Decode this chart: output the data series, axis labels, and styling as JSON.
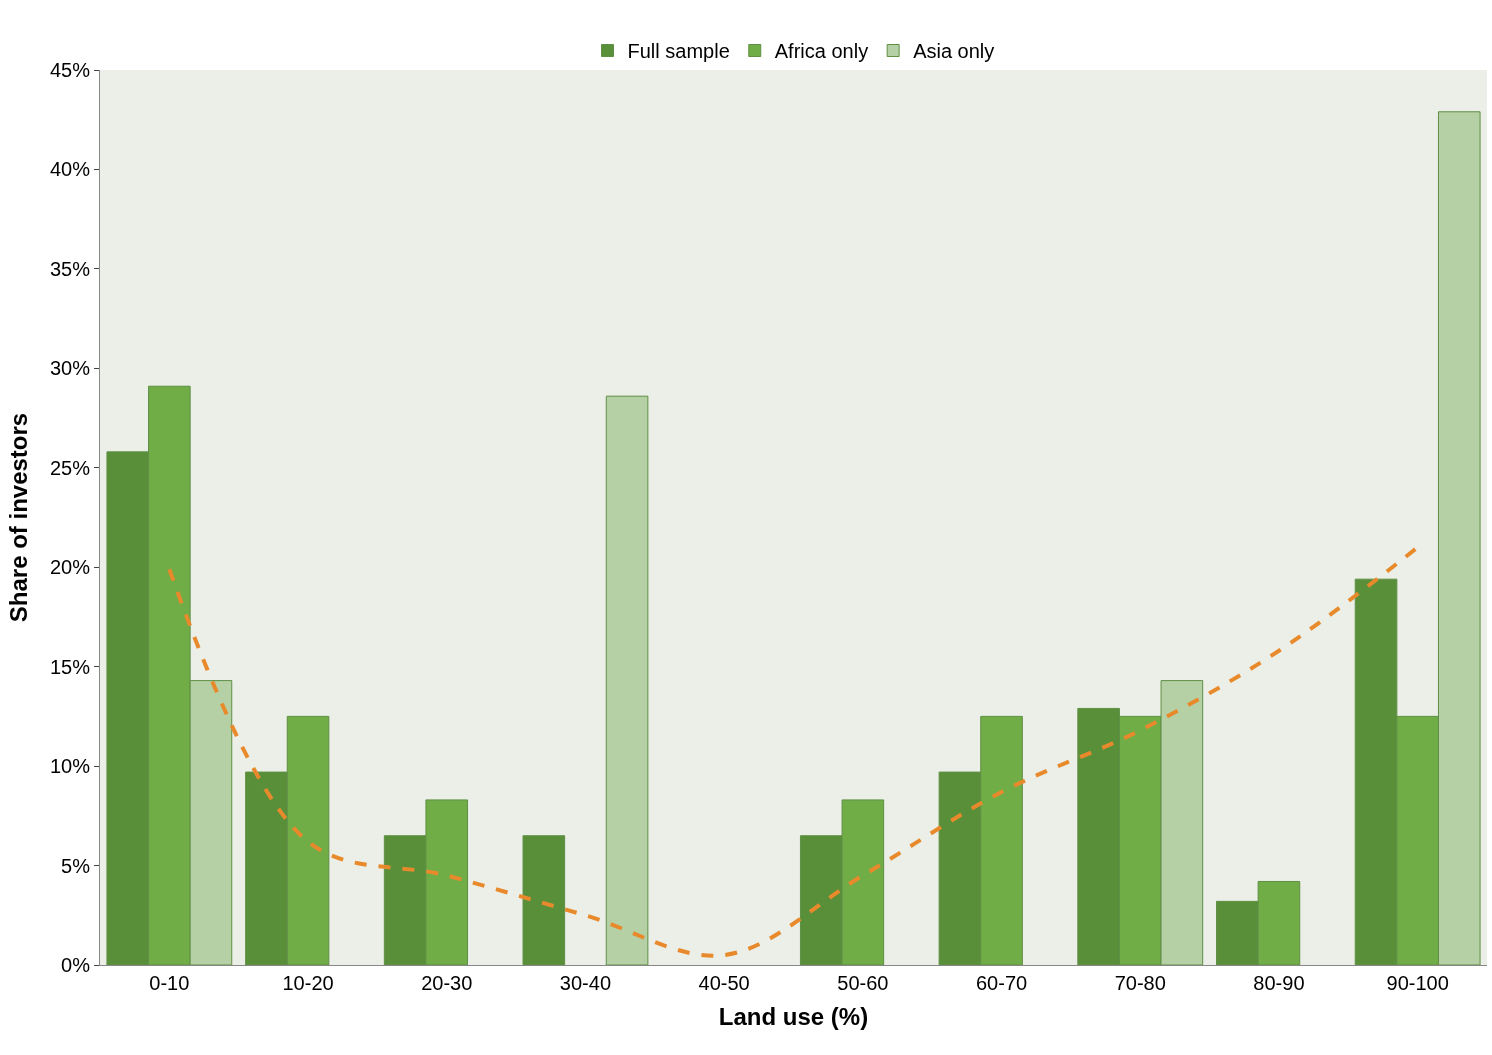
{
  "chart_data": {
    "type": "bar",
    "xlabel": "Land use (%)",
    "ylabel": "Share of investors",
    "categories": [
      "0-10",
      "10-20",
      "20-30",
      "30-40",
      "40-50",
      "50-60",
      "60-70",
      "70-80",
      "80-90",
      "90-100"
    ],
    "series": [
      {
        "name": "Full sample",
        "color": "#5a8f3a",
        "values": [
          25.8,
          9.7,
          6.5,
          6.5,
          null,
          6.5,
          9.7,
          12.9,
          3.2,
          19.4
        ]
      },
      {
        "name": "Africa only",
        "color": "#70ad47",
        "values": [
          29.1,
          12.5,
          8.3,
          null,
          null,
          8.3,
          12.5,
          12.5,
          4.2,
          12.5
        ]
      },
      {
        "name": "Asia only",
        "color": "#b5d0a5",
        "values": [
          14.3,
          null,
          null,
          28.6,
          null,
          null,
          null,
          14.3,
          null,
          42.9
        ]
      },
      {
        "type": "line",
        "color": "#e88a2c",
        "line_style": "dashed",
        "x": [
          "0-10",
          "10-20",
          "20-30",
          "30-40",
          "40-50",
          "50-60",
          "60-70",
          "70-80",
          "80-90",
          "90-100"
        ],
        "values": [
          19.9,
          6.2,
          4.5,
          2.5,
          0.5,
          4.5,
          8.7,
          11.8,
          15.8,
          21.0
        ]
      }
    ],
    "ylim": [
      0,
      45
    ],
    "yticks": [
      {
        "value": 0,
        "label": "0%"
      },
      {
        "value": 5,
        "label": "5%"
      },
      {
        "value": 10,
        "label": "10%"
      },
      {
        "value": 15,
        "label": "15%"
      },
      {
        "value": 20,
        "label": "20%"
      },
      {
        "value": 25,
        "label": "25%"
      },
      {
        "value": 30,
        "label": "30%"
      },
      {
        "value": 35,
        "label": "35%"
      },
      {
        "value": 40,
        "label": "40%"
      },
      {
        "value": 45,
        "label": "45%"
      }
    ],
    "grid": false,
    "legend": "top"
  }
}
